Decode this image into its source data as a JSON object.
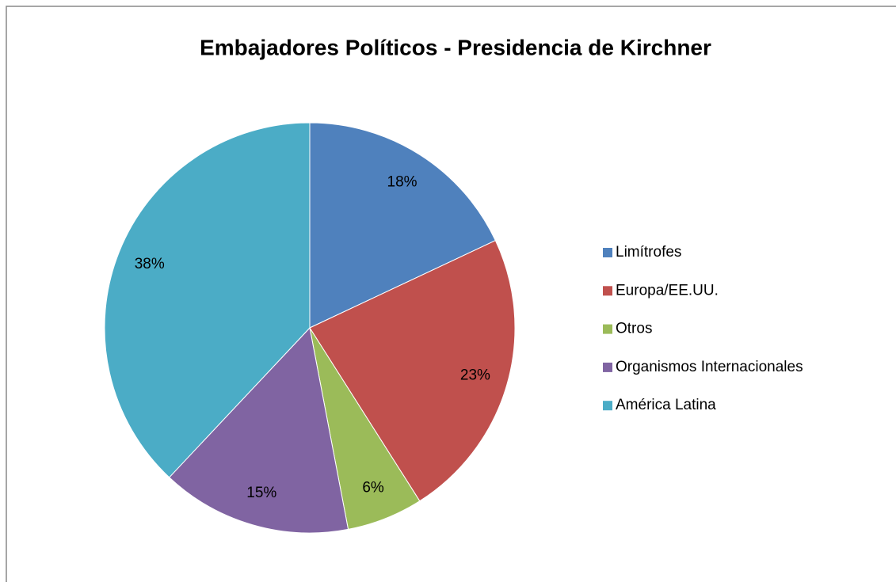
{
  "chart_data": {
    "type": "pie",
    "title": "Embajadores Políticos - Presidencia de Kirchner",
    "categories": [
      "Limítrofes",
      "Europa/EE.UU.",
      "Otros",
      "Organismos Internacionales",
      "América Latina"
    ],
    "values": [
      18,
      23,
      6,
      15,
      38
    ],
    "value_labels": [
      "18%",
      "23%",
      "6%",
      "15%",
      "38%"
    ],
    "colors": [
      "#4F81BD",
      "#C0504D",
      "#9BBB59",
      "#8064A2",
      "#4BACC6"
    ],
    "legend": "right"
  }
}
